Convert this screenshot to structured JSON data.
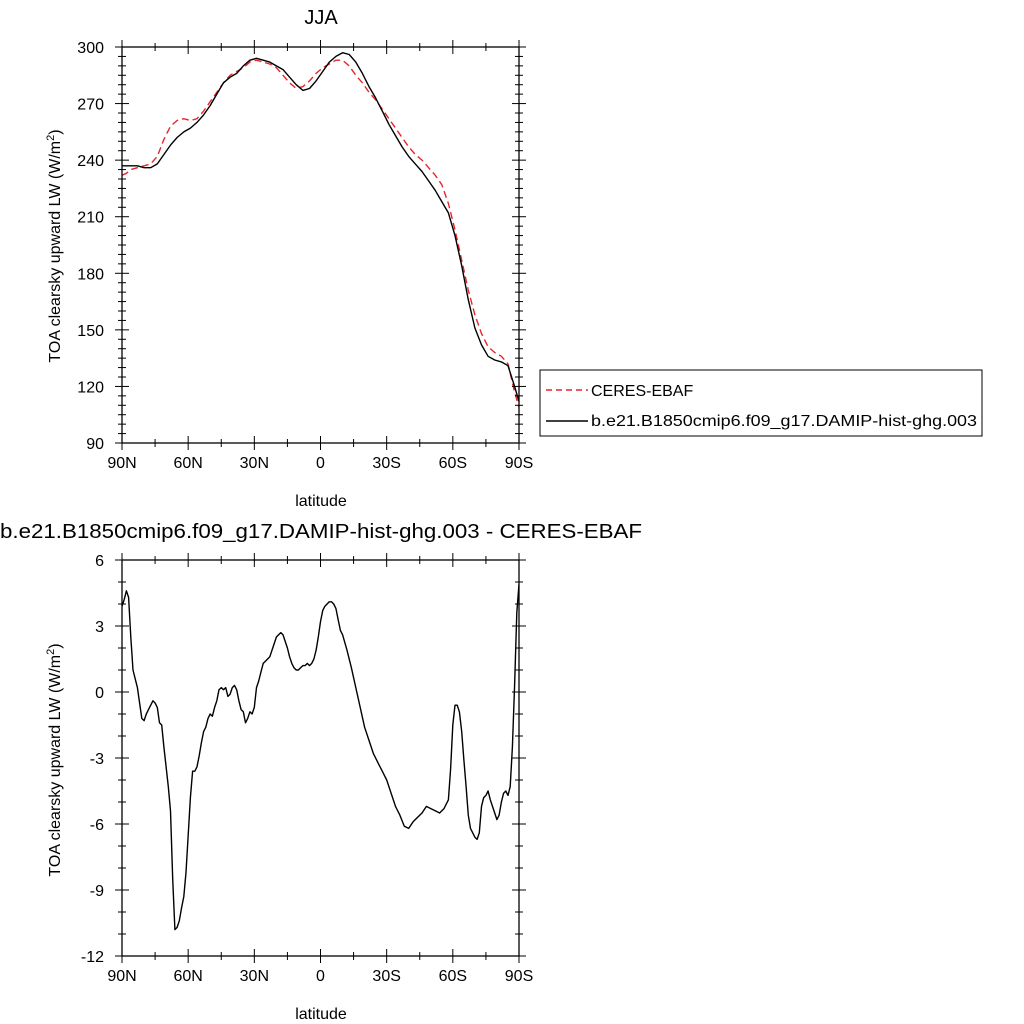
{
  "chart_data": [
    {
      "type": "line",
      "title": "JJA",
      "xlabel": "latitude",
      "ylabel": "TOA clearsky upward LW (W/m²)",
      "xlim": [
        90,
        -90
      ],
      "ylim": [
        90,
        300
      ],
      "xticks": [
        {
          "value": 90,
          "label": "90N"
        },
        {
          "value": 60,
          "label": "60N"
        },
        {
          "value": 30,
          "label": "30N"
        },
        {
          "value": 0,
          "label": "0"
        },
        {
          "value": -30,
          "label": "30S"
        },
        {
          "value": -60,
          "label": "60S"
        },
        {
          "value": -90,
          "label": "90S"
        }
      ],
      "yticks": [
        90,
        120,
        150,
        180,
        210,
        240,
        270,
        300
      ],
      "legend": "right",
      "series": [
        {
          "name": "CERES-EBAF",
          "color": "#e8242b",
          "dash": "dashed",
          "x": [
            90,
            88,
            86,
            83,
            80,
            77,
            74,
            71,
            68,
            65,
            62,
            59,
            56,
            53,
            50,
            47,
            44,
            41,
            38,
            35,
            32,
            29,
            26,
            23,
            20,
            17,
            14,
            11,
            8,
            5,
            2,
            -1,
            -4,
            -7,
            -10,
            -13,
            -16,
            -19,
            -22,
            -25,
            -28,
            -31,
            -34,
            -37,
            -40,
            -43,
            -46,
            -49,
            -52,
            -55,
            -58,
            -61,
            -64,
            -67,
            -70,
            -73,
            -76,
            -79,
            -82,
            -85,
            -88,
            -90
          ],
          "y": [
            232,
            233,
            235,
            236,
            237,
            238,
            242,
            251,
            258,
            261,
            262,
            261,
            262,
            266,
            271,
            276,
            281,
            285,
            287,
            289,
            292,
            293,
            292,
            291,
            289,
            285,
            281,
            278,
            279,
            282,
            286,
            289,
            291,
            293,
            293,
            290,
            285,
            281,
            276,
            272,
            267,
            262,
            257,
            252,
            247,
            243,
            240,
            236,
            232,
            227,
            217,
            203,
            187,
            171,
            158,
            148,
            141,
            138,
            136,
            132,
            117,
            109
          ]
        },
        {
          "name": "b.e21.B1850cmip6.f09_g17.DAMIP-hist-ghg.003",
          "color": "#000000",
          "dash": "solid",
          "x": [
            90,
            88,
            86,
            83,
            80,
            77,
            74,
            71,
            68,
            65,
            62,
            59,
            56,
            53,
            50,
            47,
            44,
            41,
            38,
            35,
            32,
            29,
            26,
            23,
            20,
            17,
            14,
            11,
            8,
            5,
            2,
            -1,
            -4,
            -7,
            -10,
            -13,
            -16,
            -19,
            -22,
            -25,
            -28,
            -31,
            -34,
            -37,
            -40,
            -43,
            -46,
            -49,
            -52,
            -55,
            -58,
            -61,
            -64,
            -67,
            -70,
            -73,
            -76,
            -79,
            -82,
            -85,
            -88,
            -90
          ],
          "y": [
            237,
            237,
            237,
            237,
            236,
            236,
            238,
            243,
            248,
            252,
            255,
            257,
            260,
            264,
            269,
            275,
            281,
            284,
            286,
            290,
            293,
            294,
            293,
            292,
            290,
            288,
            284,
            280,
            277,
            278,
            282,
            287,
            292,
            295,
            297,
            296,
            292,
            286,
            279,
            273,
            266,
            259,
            253,
            247,
            242,
            238,
            234,
            229,
            224,
            218,
            212,
            200,
            184,
            166,
            151,
            142,
            136,
            134,
            133,
            131,
            120,
            112
          ]
        }
      ]
    },
    {
      "type": "line",
      "title": "b.e21.B1850cmip6.f09_g17.DAMIP-hist-ghg.003 - CERES-EBAF",
      "xlabel": "latitude",
      "ylabel": "TOA clearsky upward LW (W/m²)",
      "xlim": [
        90,
        -90
      ],
      "ylim": [
        -12,
        6
      ],
      "xticks": [
        {
          "value": 90,
          "label": "90N"
        },
        {
          "value": 60,
          "label": "60N"
        },
        {
          "value": 30,
          "label": "30N"
        },
        {
          "value": 0,
          "label": "0"
        },
        {
          "value": -30,
          "label": "30S"
        },
        {
          "value": -60,
          "label": "60S"
        },
        {
          "value": -90,
          "label": "90S"
        }
      ],
      "yticks": [
        -12,
        -9,
        -6,
        -3,
        0,
        3,
        6
      ],
      "series": [
        {
          "name": "",
          "color": "#000000",
          "dash": "solid",
          "x": [
            90,
            89,
            88,
            87,
            86,
            85,
            84,
            83,
            82,
            81,
            80,
            79,
            78,
            77,
            76,
            75,
            74,
            73,
            72,
            71,
            70,
            69,
            68,
            67,
            66,
            65,
            64,
            63,
            62,
            61,
            60,
            59,
            58,
            57,
            56,
            55,
            54,
            53,
            52,
            51,
            50,
            49,
            48,
            47,
            46,
            45,
            44,
            43,
            42,
            41,
            40,
            39,
            38,
            37,
            36,
            35,
            34,
            33,
            32,
            31,
            30,
            29,
            28,
            27,
            26,
            25,
            24,
            23,
            22,
            21,
            20,
            19,
            18,
            17,
            16,
            15,
            14,
            13,
            12,
            11,
            10,
            9,
            8,
            7,
            6,
            5,
            4,
            3,
            2,
            1,
            0,
            -1,
            -2,
            -3,
            -4,
            -5,
            -6,
            -7,
            -8,
            -9,
            -10,
            -12,
            -14,
            -16,
            -18,
            -20,
            -22,
            -24,
            -26,
            -28,
            -30,
            -32,
            -34,
            -36,
            -38,
            -40,
            -42,
            -44,
            -46,
            -48,
            -50,
            -52,
            -54,
            -56,
            -58,
            -59,
            -60,
            -61,
            -62,
            -63,
            -64,
            -65,
            -66,
            -67,
            -68,
            -69,
            -70,
            -71,
            -72,
            -73,
            -74,
            -75,
            -76,
            -77,
            -78,
            -79,
            -80,
            -81,
            -82,
            -83,
            -84,
            -85,
            -86,
            -87,
            -88,
            -89,
            -90
          ],
          "y": [
            3.9,
            4.2,
            4.6,
            4.3,
            2.5,
            1.0,
            0.6,
            0.2,
            -0.5,
            -1.2,
            -1.3,
            -1.0,
            -0.8,
            -0.6,
            -0.4,
            -0.5,
            -0.7,
            -1.4,
            -1.5,
            -2.5,
            -3.4,
            -4.3,
            -5.4,
            -8.5,
            -10.8,
            -10.7,
            -10.4,
            -9.8,
            -9.3,
            -8.2,
            -6.5,
            -4.8,
            -3.6,
            -3.6,
            -3.4,
            -2.9,
            -2.3,
            -1.8,
            -1.6,
            -1.2,
            -1.0,
            -1.1,
            -0.7,
            -0.4,
            0.1,
            0.2,
            0.1,
            0.2,
            -0.2,
            -0.1,
            0.2,
            0.3,
            0.1,
            -0.4,
            -0.8,
            -0.9,
            -1.4,
            -1.2,
            -0.9,
            -1.0,
            -0.7,
            0.2,
            0.5,
            0.9,
            1.3,
            1.4,
            1.5,
            1.6,
            1.9,
            2.2,
            2.5,
            2.6,
            2.7,
            2.6,
            2.3,
            2.0,
            1.6,
            1.3,
            1.1,
            1.0,
            1.0,
            1.1,
            1.2,
            1.2,
            1.3,
            1.2,
            1.3,
            1.5,
            1.9,
            2.5,
            3.2,
            3.7,
            3.9,
            4.0,
            4.1,
            4.1,
            4.0,
            3.8,
            3.3,
            2.8,
            2.6,
            1.9,
            1.1,
            0.2,
            -0.7,
            -1.6,
            -2.2,
            -2.8,
            -3.2,
            -3.6,
            -4.0,
            -4.6,
            -5.2,
            -5.6,
            -6.1,
            -6.2,
            -5.9,
            -5.7,
            -5.5,
            -5.2,
            -5.3,
            -5.4,
            -5.5,
            -5.3,
            -4.9,
            -3.5,
            -1.5,
            -0.6,
            -0.6,
            -0.9,
            -1.8,
            -3.1,
            -4.3,
            -5.6,
            -6.2,
            -6.4,
            -6.6,
            -6.7,
            -6.4,
            -5.2,
            -4.8,
            -4.7,
            -4.5,
            -4.9,
            -5.2,
            -5.5,
            -5.8,
            -5.6,
            -5.0,
            -4.6,
            -4.5,
            -4.7,
            -4.3,
            -2.5,
            0.3,
            3.6,
            4.9
          ]
        }
      ]
    }
  ]
}
